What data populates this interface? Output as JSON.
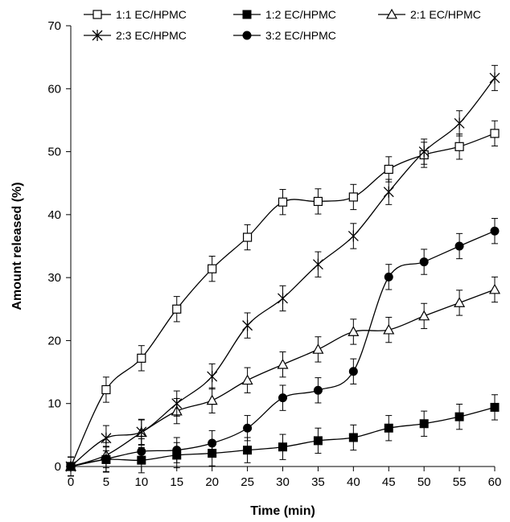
{
  "chart_data": {
    "type": "line",
    "xlabel": "Time (min)",
    "ylabel": "Amount released (%)",
    "xlim": [
      0,
      60
    ],
    "ylim": [
      0,
      70
    ],
    "x_ticks": [
      0,
      5,
      10,
      15,
      20,
      25,
      30,
      35,
      40,
      45,
      50,
      55,
      60
    ],
    "y_ticks": [
      0,
      10,
      20,
      30,
      40,
      50,
      60,
      70
    ],
    "grid": false,
    "legend_position": "top",
    "x": [
      0,
      5,
      10,
      15,
      20,
      25,
      30,
      35,
      40,
      45,
      50,
      55,
      60
    ],
    "series": [
      {
        "name": "1:1 EC/HPMC",
        "marker": "open-square",
        "values": [
          0,
          12.2,
          17.2,
          25.0,
          31.4,
          36.4,
          42.0,
          42.1,
          42.8,
          47.2,
          49.5,
          50.8,
          52.9
        ],
        "errors": [
          1.5,
          2.0,
          2.0,
          2.0,
          2.0,
          2.0,
          2.0,
          2.0,
          2.0,
          2.0,
          2.0,
          2.0,
          2.0
        ]
      },
      {
        "name": "1:2 EC/HPMC",
        "marker": "filled-square",
        "values": [
          0,
          1.1,
          1.0,
          1.8,
          2.1,
          2.6,
          3.1,
          4.1,
          4.6,
          6.1,
          6.8,
          7.9,
          9.4
        ],
        "errors": [
          1.5,
          2.0,
          2.0,
          2.0,
          2.0,
          2.0,
          2.0,
          2.0,
          2.0,
          2.0,
          2.0,
          2.0,
          2.0
        ]
      },
      {
        "name": "2:1 EC/HPMC",
        "marker": "open-triangle",
        "values": [
          0,
          1.8,
          5.4,
          8.8,
          10.5,
          13.7,
          16.2,
          18.6,
          21.4,
          21.7,
          23.9,
          26.0,
          28.1
        ],
        "errors": [
          1.5,
          2.0,
          2.0,
          2.0,
          2.0,
          2.0,
          2.0,
          2.0,
          2.0,
          2.0,
          2.0,
          2.0,
          2.0
        ]
      },
      {
        "name": "2:3 EC/HPMC",
        "marker": "star",
        "values": [
          0,
          4.5,
          5.5,
          10.0,
          14.3,
          22.4,
          26.7,
          32.1,
          36.6,
          43.6,
          50.0,
          54.5,
          61.7
        ],
        "errors": [
          1.5,
          2.0,
          2.0,
          2.0,
          2.0,
          2.0,
          2.0,
          2.0,
          2.0,
          2.0,
          2.0,
          2.0,
          2.0
        ]
      },
      {
        "name": "3:2 EC/HPMC",
        "marker": "filled-circle",
        "values": [
          0,
          1.2,
          2.4,
          2.6,
          3.7,
          6.1,
          10.9,
          12.1,
          15.1,
          30.1,
          32.5,
          35.0,
          37.4
        ],
        "errors": [
          1.5,
          2.0,
          2.0,
          2.0,
          2.0,
          2.0,
          2.0,
          2.0,
          2.0,
          2.0,
          2.0,
          2.0,
          2.0
        ]
      }
    ]
  }
}
